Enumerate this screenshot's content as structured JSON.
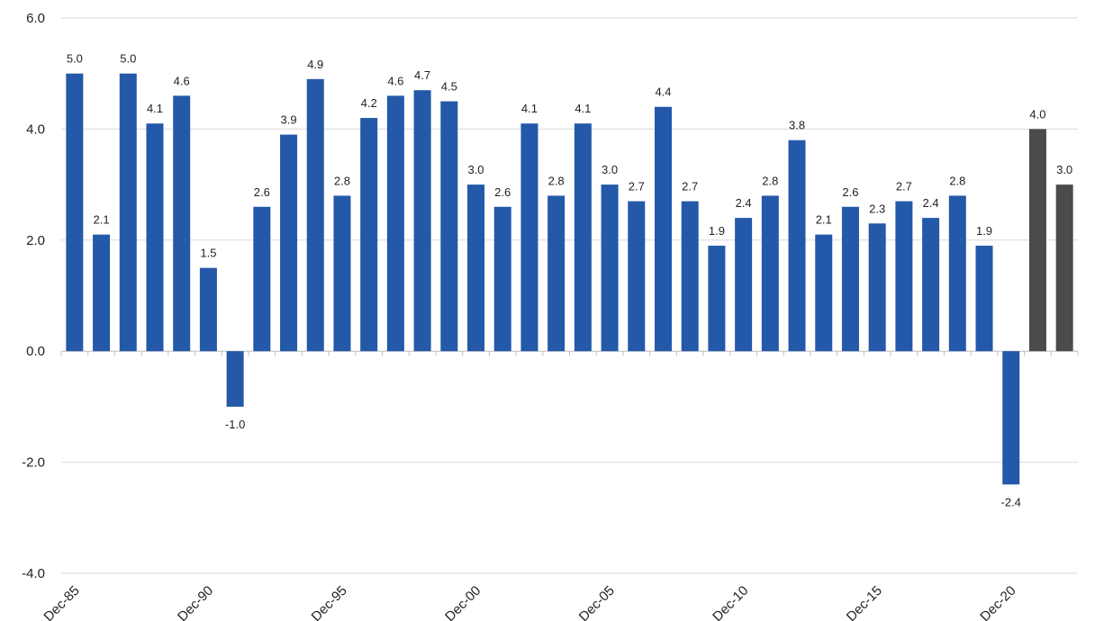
{
  "chart_data": {
    "type": "bar",
    "title": "",
    "xlabel": "",
    "ylabel": "",
    "ylim": [
      -4.0,
      6.0
    ],
    "yticks": [
      -4.0,
      -2.0,
      0.0,
      2.0,
      4.0,
      6.0
    ],
    "ytick_labels": [
      "-4.0",
      "-2.0",
      "0.0",
      "2.0",
      "4.0",
      "6.0"
    ],
    "grid": true,
    "xtick_labels": [
      "Dec-85",
      "Dec-90",
      "Dec-95",
      "Dec-00",
      "Dec-05",
      "Dec-10",
      "Dec-15",
      "Dec-20"
    ],
    "xtick_index": [
      0,
      5,
      10,
      15,
      20,
      25,
      30,
      35
    ],
    "values": [
      5.0,
      2.1,
      5.0,
      4.1,
      4.6,
      1.5,
      -1.0,
      2.6,
      3.9,
      4.9,
      2.8,
      4.2,
      4.6,
      4.7,
      4.5,
      3.0,
      2.6,
      4.1,
      2.8,
      4.1,
      3.0,
      2.7,
      4.4,
      2.7,
      1.9,
      2.4,
      2.8,
      3.8,
      2.1,
      2.6,
      2.3,
      2.7,
      2.4,
      2.8,
      1.9,
      -2.4,
      4.0,
      3.0
    ],
    "value_labels": [
      "5.0",
      "2.1",
      "5.0",
      "4.1",
      "4.6",
      "1.5",
      "-1.0",
      "2.6",
      "3.9",
      "4.9",
      "2.8",
      "4.2",
      "4.6",
      "4.7",
      "4.5",
      "3.0",
      "2.6",
      "4.1",
      "2.8",
      "4.1",
      "3.0",
      "2.7",
      "4.4",
      "2.7",
      "1.9",
      "2.4",
      "2.8",
      "3.8",
      "2.1",
      "2.6",
      "2.3",
      "2.7",
      "2.4",
      "2.8",
      "1.9",
      "-2.4",
      "4.0",
      "3.0"
    ],
    "forecast_count": 2,
    "colors": {
      "actual": "#2359a8",
      "forecast": "#4b4b4b",
      "grid": "#d9d9d9",
      "axis": "#bfbfbf"
    }
  }
}
